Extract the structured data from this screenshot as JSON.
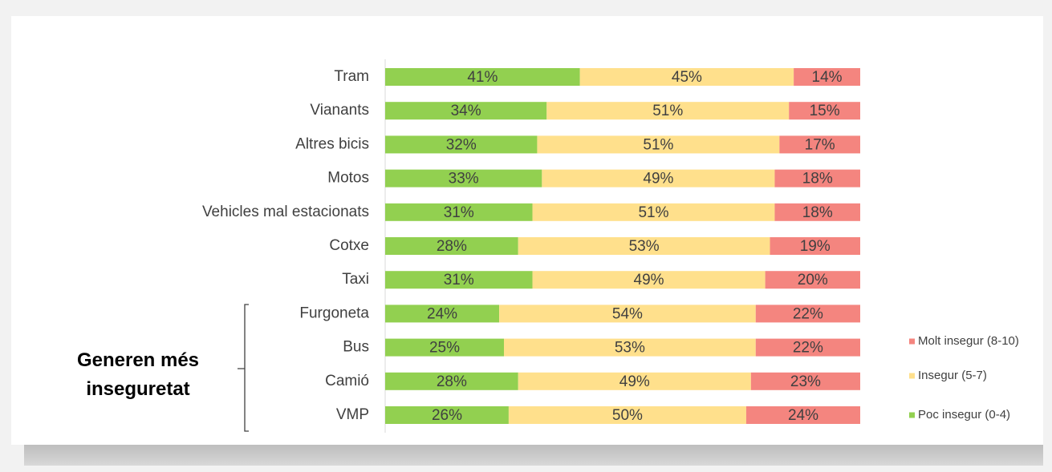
{
  "chart_data": {
    "type": "stacked-barh",
    "annotation": "Generen més inseguretat",
    "categories": [
      "Tram",
      "Vianants",
      "Altres bicis",
      "Motos",
      "Vehicles mal estacionats",
      "Cotxe",
      "Taxi",
      "Furgoneta",
      "Bus",
      "Camió",
      "VMP"
    ],
    "xlim": [
      0,
      100
    ],
    "series": [
      {
        "name": "Poc insegur (0-4)",
        "color": "#92d050",
        "values": [
          41,
          34,
          32,
          33,
          31,
          28,
          31,
          24,
          25,
          28,
          26
        ],
        "value_labels": [
          "41%",
          "34%",
          "32%",
          "33%",
          "31%",
          "28%",
          "31%",
          "24%",
          "25%",
          "28%",
          "26%"
        ]
      },
      {
        "name": "Insegur (5-7)",
        "color": "#ffe08c",
        "values": [
          45,
          51,
          51,
          49,
          51,
          53,
          49,
          54,
          53,
          49,
          50
        ],
        "value_labels": [
          "45%",
          "51%",
          "51%",
          "49%",
          "51%",
          "53%",
          "49%",
          "54%",
          "53%",
          "49%",
          "50%"
        ]
      },
      {
        "name": "Molt insegur (8-10)",
        "color": "#f4857f",
        "values": [
          14,
          15,
          17,
          18,
          18,
          19,
          20,
          22,
          22,
          23,
          24
        ],
        "value_labels": [
          "14%",
          "15%",
          "17%",
          "18%",
          "18%",
          "19%",
          "20%",
          "22%",
          "22%",
          "23%",
          "24%"
        ]
      }
    ],
    "legend": "right"
  }
}
